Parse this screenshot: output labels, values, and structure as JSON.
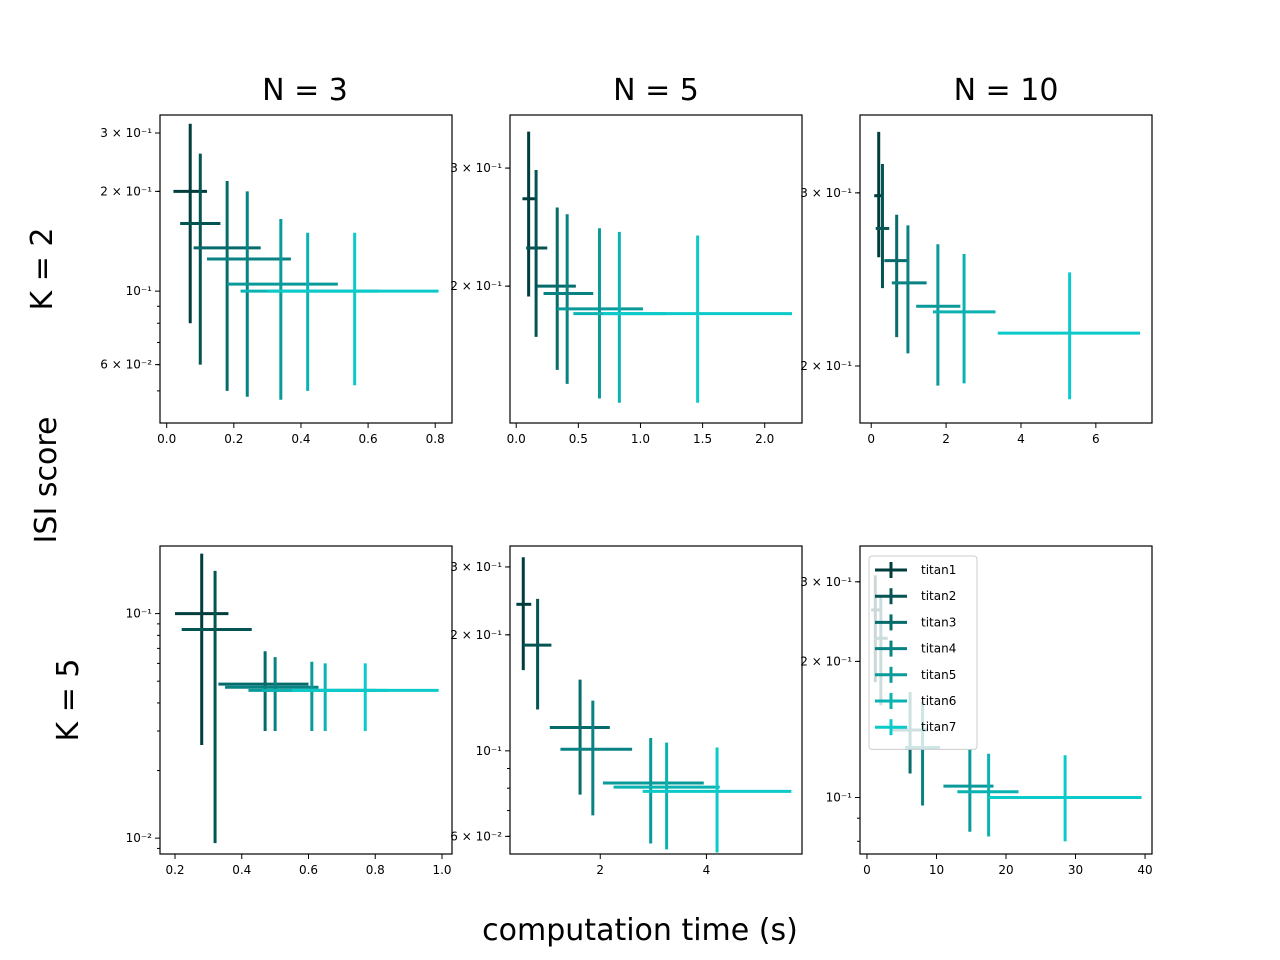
{
  "figure": {
    "xlabel": "computation time (s)",
    "ylabel": "ISI score",
    "col_titles": [
      "N = 3",
      "N = 5",
      "N = 10"
    ],
    "row_titles": [
      "K = 2",
      "K = 5"
    ]
  },
  "colors": {
    "titan1": "#003d3d",
    "titan2": "#045454",
    "titan3": "#066b6b",
    "titan4": "#088282",
    "titan5": "#0a9a9a",
    "titan6": "#0bb2b2",
    "titan7": "#0ccaca"
  },
  "legend": {
    "panel": 5,
    "placement": "upper-left",
    "entries": [
      "titan1",
      "titan2",
      "titan3",
      "titan4",
      "titan5",
      "titan6",
      "titan7"
    ]
  },
  "chart_data": [
    {
      "type": "scatter",
      "xlim": [
        -0.02,
        0.85
      ],
      "ylim": [
        0.04,
        0.34
      ],
      "yscale": "log",
      "xticks": [
        {
          "v": 0.0,
          "label": "0.0"
        },
        {
          "v": 0.2,
          "label": "0.2"
        },
        {
          "v": 0.4,
          "label": "0.4"
        },
        {
          "v": 0.6,
          "label": "0.6"
        },
        {
          "v": 0.8,
          "label": "0.8"
        }
      ],
      "yticks": [
        {
          "v": 0.3,
          "label": "3 × 10⁻¹"
        },
        {
          "v": 0.2,
          "label": "2 × 10⁻¹"
        },
        {
          "v": 0.1,
          "label": "10⁻¹"
        },
        {
          "v": 0.06,
          "label": "6 × 10⁻²"
        }
      ],
      "series": [
        {
          "name": "titan1",
          "x": 0.07,
          "xerr": [
            0.02,
            0.12
          ],
          "y": 0.2,
          "yerr": [
            0.08,
            0.32
          ]
        },
        {
          "name": "titan2",
          "x": 0.1,
          "xerr": [
            0.04,
            0.16
          ],
          "y": 0.16,
          "yerr": [
            0.06,
            0.26
          ]
        },
        {
          "name": "titan3",
          "x": 0.18,
          "xerr": [
            0.08,
            0.28
          ],
          "y": 0.135,
          "yerr": [
            0.05,
            0.215
          ]
        },
        {
          "name": "titan4",
          "x": 0.24,
          "xerr": [
            0.12,
            0.37
          ],
          "y": 0.125,
          "yerr": [
            0.048,
            0.2
          ]
        },
        {
          "name": "titan5",
          "x": 0.34,
          "xerr": [
            0.18,
            0.51
          ],
          "y": 0.105,
          "yerr": [
            0.047,
            0.165
          ]
        },
        {
          "name": "titan6",
          "x": 0.42,
          "xerr": [
            0.22,
            0.63
          ],
          "y": 0.1,
          "yerr": [
            0.05,
            0.15
          ]
        },
        {
          "name": "titan7",
          "x": 0.56,
          "xerr": [
            0.3,
            0.81
          ],
          "y": 0.1,
          "yerr": [
            0.052,
            0.15
          ]
        }
      ]
    },
    {
      "type": "scatter",
      "xlim": [
        -0.05,
        2.3
      ],
      "ylim": [
        0.125,
        0.36
      ],
      "yscale": "log",
      "xticks": [
        {
          "v": 0.0,
          "label": "0.0"
        },
        {
          "v": 0.5,
          "label": "0.5"
        },
        {
          "v": 1.0,
          "label": "1.0"
        },
        {
          "v": 1.5,
          "label": "1.5"
        },
        {
          "v": 2.0,
          "label": "2.0"
        }
      ],
      "yticks": [
        {
          "v": 0.3,
          "label": "3 × 10⁻¹"
        },
        {
          "v": 0.2,
          "label": "2 × 10⁻¹"
        }
      ],
      "series": [
        {
          "name": "titan1",
          "x": 0.1,
          "xerr": [
            0.05,
            0.16
          ],
          "y": 0.27,
          "yerr": [
            0.193,
            0.34
          ]
        },
        {
          "name": "titan2",
          "x": 0.16,
          "xerr": [
            0.08,
            0.25
          ],
          "y": 0.228,
          "yerr": [
            0.168,
            0.298
          ]
        },
        {
          "name": "titan3",
          "x": 0.33,
          "xerr": [
            0.17,
            0.48
          ],
          "y": 0.2,
          "yerr": [
            0.15,
            0.262
          ]
        },
        {
          "name": "titan4",
          "x": 0.41,
          "xerr": [
            0.22,
            0.62
          ],
          "y": 0.195,
          "yerr": [
            0.143,
            0.256
          ]
        },
        {
          "name": "titan5",
          "x": 0.67,
          "xerr": [
            0.33,
            1.02
          ],
          "y": 0.185,
          "yerr": [
            0.136,
            0.244
          ]
        },
        {
          "name": "titan6",
          "x": 0.83,
          "xerr": [
            0.46,
            1.2
          ],
          "y": 0.182,
          "yerr": [
            0.134,
            0.241
          ]
        },
        {
          "name": "titan7",
          "x": 1.46,
          "xerr": [
            0.7,
            2.22
          ],
          "y": 0.182,
          "yerr": [
            0.134,
            0.238
          ]
        }
      ]
    },
    {
      "type": "scatter",
      "xlim": [
        -0.3,
        7.5
      ],
      "ylim": [
        0.175,
        0.36
      ],
      "yscale": "log",
      "xticks": [
        {
          "v": 0,
          "label": "0"
        },
        {
          "v": 2,
          "label": "2"
        },
        {
          "v": 4,
          "label": "4"
        },
        {
          "v": 6,
          "label": "6"
        }
      ],
      "yticks": [
        {
          "v": 0.3,
          "label": "3 × 10⁻¹"
        },
        {
          "v": 0.2,
          "label": "2 × 10⁻¹"
        }
      ],
      "series": [
        {
          "name": "titan1",
          "x": 0.2,
          "xerr": [
            0.08,
            0.32
          ],
          "y": 0.298,
          "yerr": [
            0.258,
            0.346
          ]
        },
        {
          "name": "titan2",
          "x": 0.3,
          "xerr": [
            0.12,
            0.48
          ],
          "y": 0.276,
          "yerr": [
            0.24,
            0.321
          ]
        },
        {
          "name": "titan3",
          "x": 0.68,
          "xerr": [
            0.35,
            1.02
          ],
          "y": 0.256,
          "yerr": [
            0.214,
            0.285
          ]
        },
        {
          "name": "titan4",
          "x": 0.98,
          "xerr": [
            0.55,
            1.48
          ],
          "y": 0.243,
          "yerr": [
            0.206,
            0.278
          ]
        },
        {
          "name": "titan5",
          "x": 1.78,
          "xerr": [
            1.2,
            2.38
          ],
          "y": 0.23,
          "yerr": [
            0.191,
            0.266
          ]
        },
        {
          "name": "titan6",
          "x": 2.48,
          "xerr": [
            1.65,
            3.32
          ],
          "y": 0.227,
          "yerr": [
            0.192,
            0.26
          ]
        },
        {
          "name": "titan7",
          "x": 5.3,
          "xerr": [
            3.38,
            7.18
          ],
          "y": 0.216,
          "yerr": [
            0.185,
            0.249
          ]
        }
      ]
    },
    {
      "type": "scatter",
      "xlim": [
        0.155,
        1.03
      ],
      "ylim": [
        0.0085,
        0.2
      ],
      "yscale": "log",
      "xticks": [
        {
          "v": 0.2,
          "label": "0.2"
        },
        {
          "v": 0.4,
          "label": "0.4"
        },
        {
          "v": 0.6,
          "label": "0.6"
        },
        {
          "v": 0.8,
          "label": "0.8"
        },
        {
          "v": 1.0,
          "label": "1.0"
        }
      ],
      "yticks": [
        {
          "v": 0.1,
          "label": "10⁻¹"
        },
        {
          "v": 0.01,
          "label": "10⁻²"
        }
      ],
      "series": [
        {
          "name": "titan1",
          "x": 0.28,
          "xerr": [
            0.2,
            0.36
          ],
          "y": 0.1,
          "yerr": [
            0.026,
            0.185
          ]
        },
        {
          "name": "titan2",
          "x": 0.32,
          "xerr": [
            0.22,
            0.43
          ],
          "y": 0.085,
          "yerr": [
            0.0095,
            0.155
          ]
        },
        {
          "name": "titan3",
          "x": 0.47,
          "xerr": [
            0.33,
            0.6
          ],
          "y": 0.0485,
          "yerr": [
            0.03,
            0.068
          ]
        },
        {
          "name": "titan4",
          "x": 0.5,
          "xerr": [
            0.35,
            0.63
          ],
          "y": 0.047,
          "yerr": [
            0.03,
            0.064
          ]
        },
        {
          "name": "titan5",
          "x": 0.61,
          "xerr": [
            0.42,
            0.8
          ],
          "y": 0.0455,
          "yerr": [
            0.03,
            0.061
          ]
        },
        {
          "name": "titan6",
          "x": 0.65,
          "xerr": [
            0.46,
            0.84
          ],
          "y": 0.0455,
          "yerr": [
            0.03,
            0.06
          ]
        },
        {
          "name": "titan7",
          "x": 0.77,
          "xerr": [
            0.55,
            0.99
          ],
          "y": 0.0455,
          "yerr": [
            0.03,
            0.06
          ]
        }
      ]
    },
    {
      "type": "scatter",
      "xlim": [
        0.3,
        5.8
      ],
      "ylim": [
        0.054,
        0.34
      ],
      "yscale": "log",
      "xticks": [
        {
          "v": 2,
          "label": "2"
        },
        {
          "v": 4,
          "label": "4"
        }
      ],
      "yticks": [
        {
          "v": 0.3,
          "label": "3 × 10⁻¹"
        },
        {
          "v": 0.2,
          "label": "2 × 10⁻¹"
        },
        {
          "v": 0.1,
          "label": "10⁻¹"
        },
        {
          "v": 0.06,
          "label": "6 × 10⁻²"
        }
      ],
      "series": [
        {
          "name": "titan1",
          "x": 0.55,
          "xerr": [
            0.42,
            0.7
          ],
          "y": 0.24,
          "yerr": [
            0.162,
            0.318
          ]
        },
        {
          "name": "titan2",
          "x": 0.82,
          "xerr": [
            0.55,
            1.08
          ],
          "y": 0.188,
          "yerr": [
            0.128,
            0.248
          ]
        },
        {
          "name": "titan3",
          "x": 1.62,
          "xerr": [
            1.05,
            2.18
          ],
          "y": 0.115,
          "yerr": [
            0.077,
            0.153
          ]
        },
        {
          "name": "titan4",
          "x": 1.86,
          "xerr": [
            1.25,
            2.6
          ],
          "y": 0.101,
          "yerr": [
            0.068,
            0.135
          ]
        },
        {
          "name": "titan5",
          "x": 2.95,
          "xerr": [
            2.05,
            3.95
          ],
          "y": 0.0825,
          "yerr": [
            0.0575,
            0.108
          ]
        },
        {
          "name": "titan6",
          "x": 3.25,
          "xerr": [
            2.25,
            4.25
          ],
          "y": 0.0805,
          "yerr": [
            0.0555,
            0.105
          ]
        },
        {
          "name": "titan7",
          "x": 4.2,
          "xerr": [
            2.8,
            5.6
          ],
          "y": 0.0785,
          "yerr": [
            0.0545,
            0.102
          ]
        }
      ]
    },
    {
      "type": "scatter",
      "xlim": [
        -1,
        41
      ],
      "ylim": [
        0.075,
        0.36
      ],
      "yscale": "log",
      "xticks": [
        {
          "v": 0,
          "label": "0"
        },
        {
          "v": 10,
          "label": "10"
        },
        {
          "v": 20,
          "label": "20"
        },
        {
          "v": 30,
          "label": "30"
        },
        {
          "v": 40,
          "label": "40"
        }
      ],
      "yticks": [
        {
          "v": 0.3,
          "label": "3 × 10⁻¹"
        },
        {
          "v": 0.2,
          "label": "2 × 10⁻¹"
        },
        {
          "v": 0.1,
          "label": "10⁻¹"
        }
      ],
      "series": [
        {
          "name": "titan1",
          "x": 1.2,
          "xerr": [
            0.6,
            1.9
          ],
          "y": 0.26,
          "yerr": [
            0.18,
            0.31
          ]
        },
        {
          "name": "titan2",
          "x": 2.0,
          "xerr": [
            1.0,
            3.0
          ],
          "y": 0.225,
          "yerr": [
            0.16,
            0.28
          ]
        },
        {
          "name": "titan3",
          "x": 6.2,
          "xerr": [
            3.5,
            8.8
          ],
          "y": 0.141,
          "yerr": [
            0.113,
            0.171
          ]
        },
        {
          "name": "titan4",
          "x": 8.0,
          "xerr": [
            5.5,
            10.5
          ],
          "y": 0.129,
          "yerr": [
            0.096,
            0.163
          ]
        },
        {
          "name": "titan5",
          "x": 14.8,
          "xerr": [
            11.0,
            18.2
          ],
          "y": 0.106,
          "yerr": [
            0.084,
            0.128
          ]
        },
        {
          "name": "titan6",
          "x": 17.5,
          "xerr": [
            13.0,
            21.8
          ],
          "y": 0.103,
          "yerr": [
            0.082,
            0.125
          ]
        },
        {
          "name": "titan7",
          "x": 28.5,
          "xerr": [
            17.5,
            39.5
          ],
          "y": 0.1,
          "yerr": [
            0.08,
            0.124
          ]
        }
      ]
    }
  ]
}
